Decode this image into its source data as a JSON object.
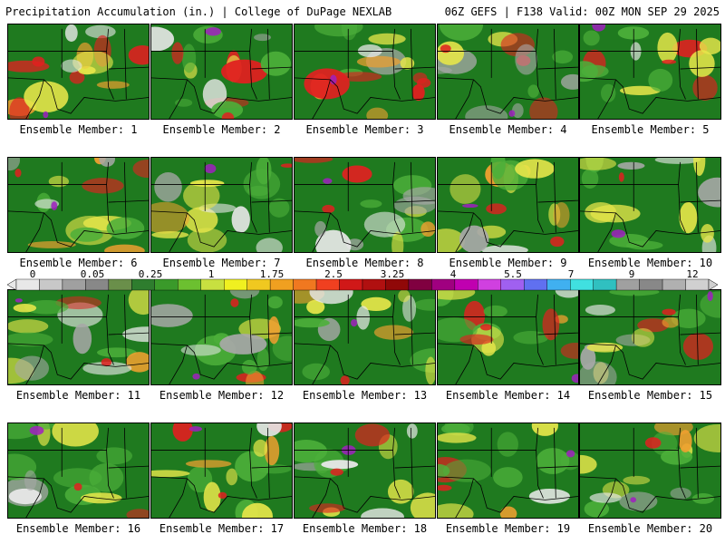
{
  "header": {
    "left": "Precipitation Accumulation (in.) | College of DuPage NEXLAB",
    "right": "06Z GEFS | F138 Valid: 00Z MON SEP 29 2025"
  },
  "colors": {
    "ocean": "#2f8a2a",
    "land": "#1f7a1f",
    "green_light": "#4caf3a",
    "yellow": "#e6e64a",
    "orange": "#f0a030",
    "red": "#e02020",
    "purple": "#a020c0",
    "gray": "#a8a8a8",
    "white": "#e8e8e8",
    "border": "#000000"
  },
  "colorbar": {
    "ticks": [
      "0",
      "0.05",
      "0.25",
      "1",
      "1.75",
      "2.5",
      "3.25",
      "4",
      "5.5",
      "7",
      "9",
      "12"
    ],
    "segment_colors": [
      "#e8e8e8",
      "#c8c8c8",
      "#a0a0a0",
      "#888888",
      "#6a8f4a",
      "#2e7d2e",
      "#3a9a2a",
      "#6cc030",
      "#c8e040",
      "#f0f020",
      "#f0c820",
      "#f0a020",
      "#f07820",
      "#f04020",
      "#d01818",
      "#b01010",
      "#900808",
      "#800040",
      "#a00080",
      "#c000b0",
      "#d040e0",
      "#a060f0",
      "#6070f0",
      "#40b0f0",
      "#40e0e0",
      "#30c0c0",
      "#a0a0a0",
      "#888888",
      "#b0b0b0",
      "#d0d0d0"
    ]
  },
  "members": [
    {
      "label": "Ensemble Member: 1"
    },
    {
      "label": "Ensemble Member: 2"
    },
    {
      "label": "Ensemble Member: 3"
    },
    {
      "label": "Ensemble Member: 4"
    },
    {
      "label": "Ensemble Member: 5"
    },
    {
      "label": "Ensemble Member: 6"
    },
    {
      "label": "Ensemble Member: 7"
    },
    {
      "label": "Ensemble Member: 8"
    },
    {
      "label": "Ensemble Member: 9"
    },
    {
      "label": "Ensemble Member: 10"
    },
    {
      "label": "Ensemble Member: 11"
    },
    {
      "label": "Ensemble Member: 12"
    },
    {
      "label": "Ensemble Member: 13"
    },
    {
      "label": "Ensemble Member: 14"
    },
    {
      "label": "Ensemble Member: 15"
    },
    {
      "label": "Ensemble Member: 16"
    },
    {
      "label": "Ensemble Member: 17"
    },
    {
      "label": "Ensemble Member: 18"
    },
    {
      "label": "Ensemble Member: 19"
    },
    {
      "label": "Ensemble Member: 20"
    }
  ]
}
